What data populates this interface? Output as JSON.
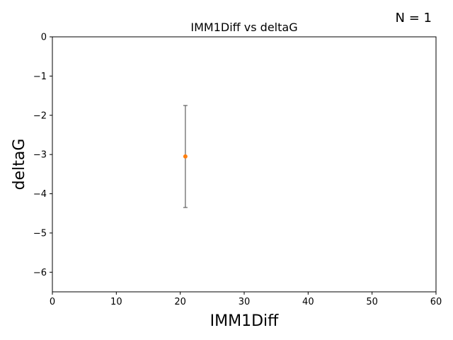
{
  "chart_data": {
    "type": "scatter",
    "title": "IMM1Diff vs deltaG",
    "xlabel": "IMM1Diff",
    "ylabel": "deltaG",
    "xlim": [
      0,
      60
    ],
    "ylim": [
      -6.5,
      0
    ],
    "xticks": [
      0,
      10,
      20,
      30,
      40,
      50,
      60
    ],
    "yticks": [
      0,
      -1,
      -2,
      -3,
      -4,
      -5,
      -6
    ],
    "xtick_labels": [
      "0",
      "10",
      "20",
      "30",
      "40",
      "50",
      "60"
    ],
    "ytick_labels": [
      "0",
      "−1",
      "−2",
      "−3",
      "−4",
      "−5",
      "−6"
    ],
    "grid": false,
    "annotation": "N = 1",
    "series": [
      {
        "points": [
          {
            "x": 20.8,
            "y": -3.05,
            "err_low": -4.35,
            "err_high": -1.75
          }
        ],
        "color": "#ff7f0e",
        "errorbar_color": "#606060"
      }
    ]
  }
}
